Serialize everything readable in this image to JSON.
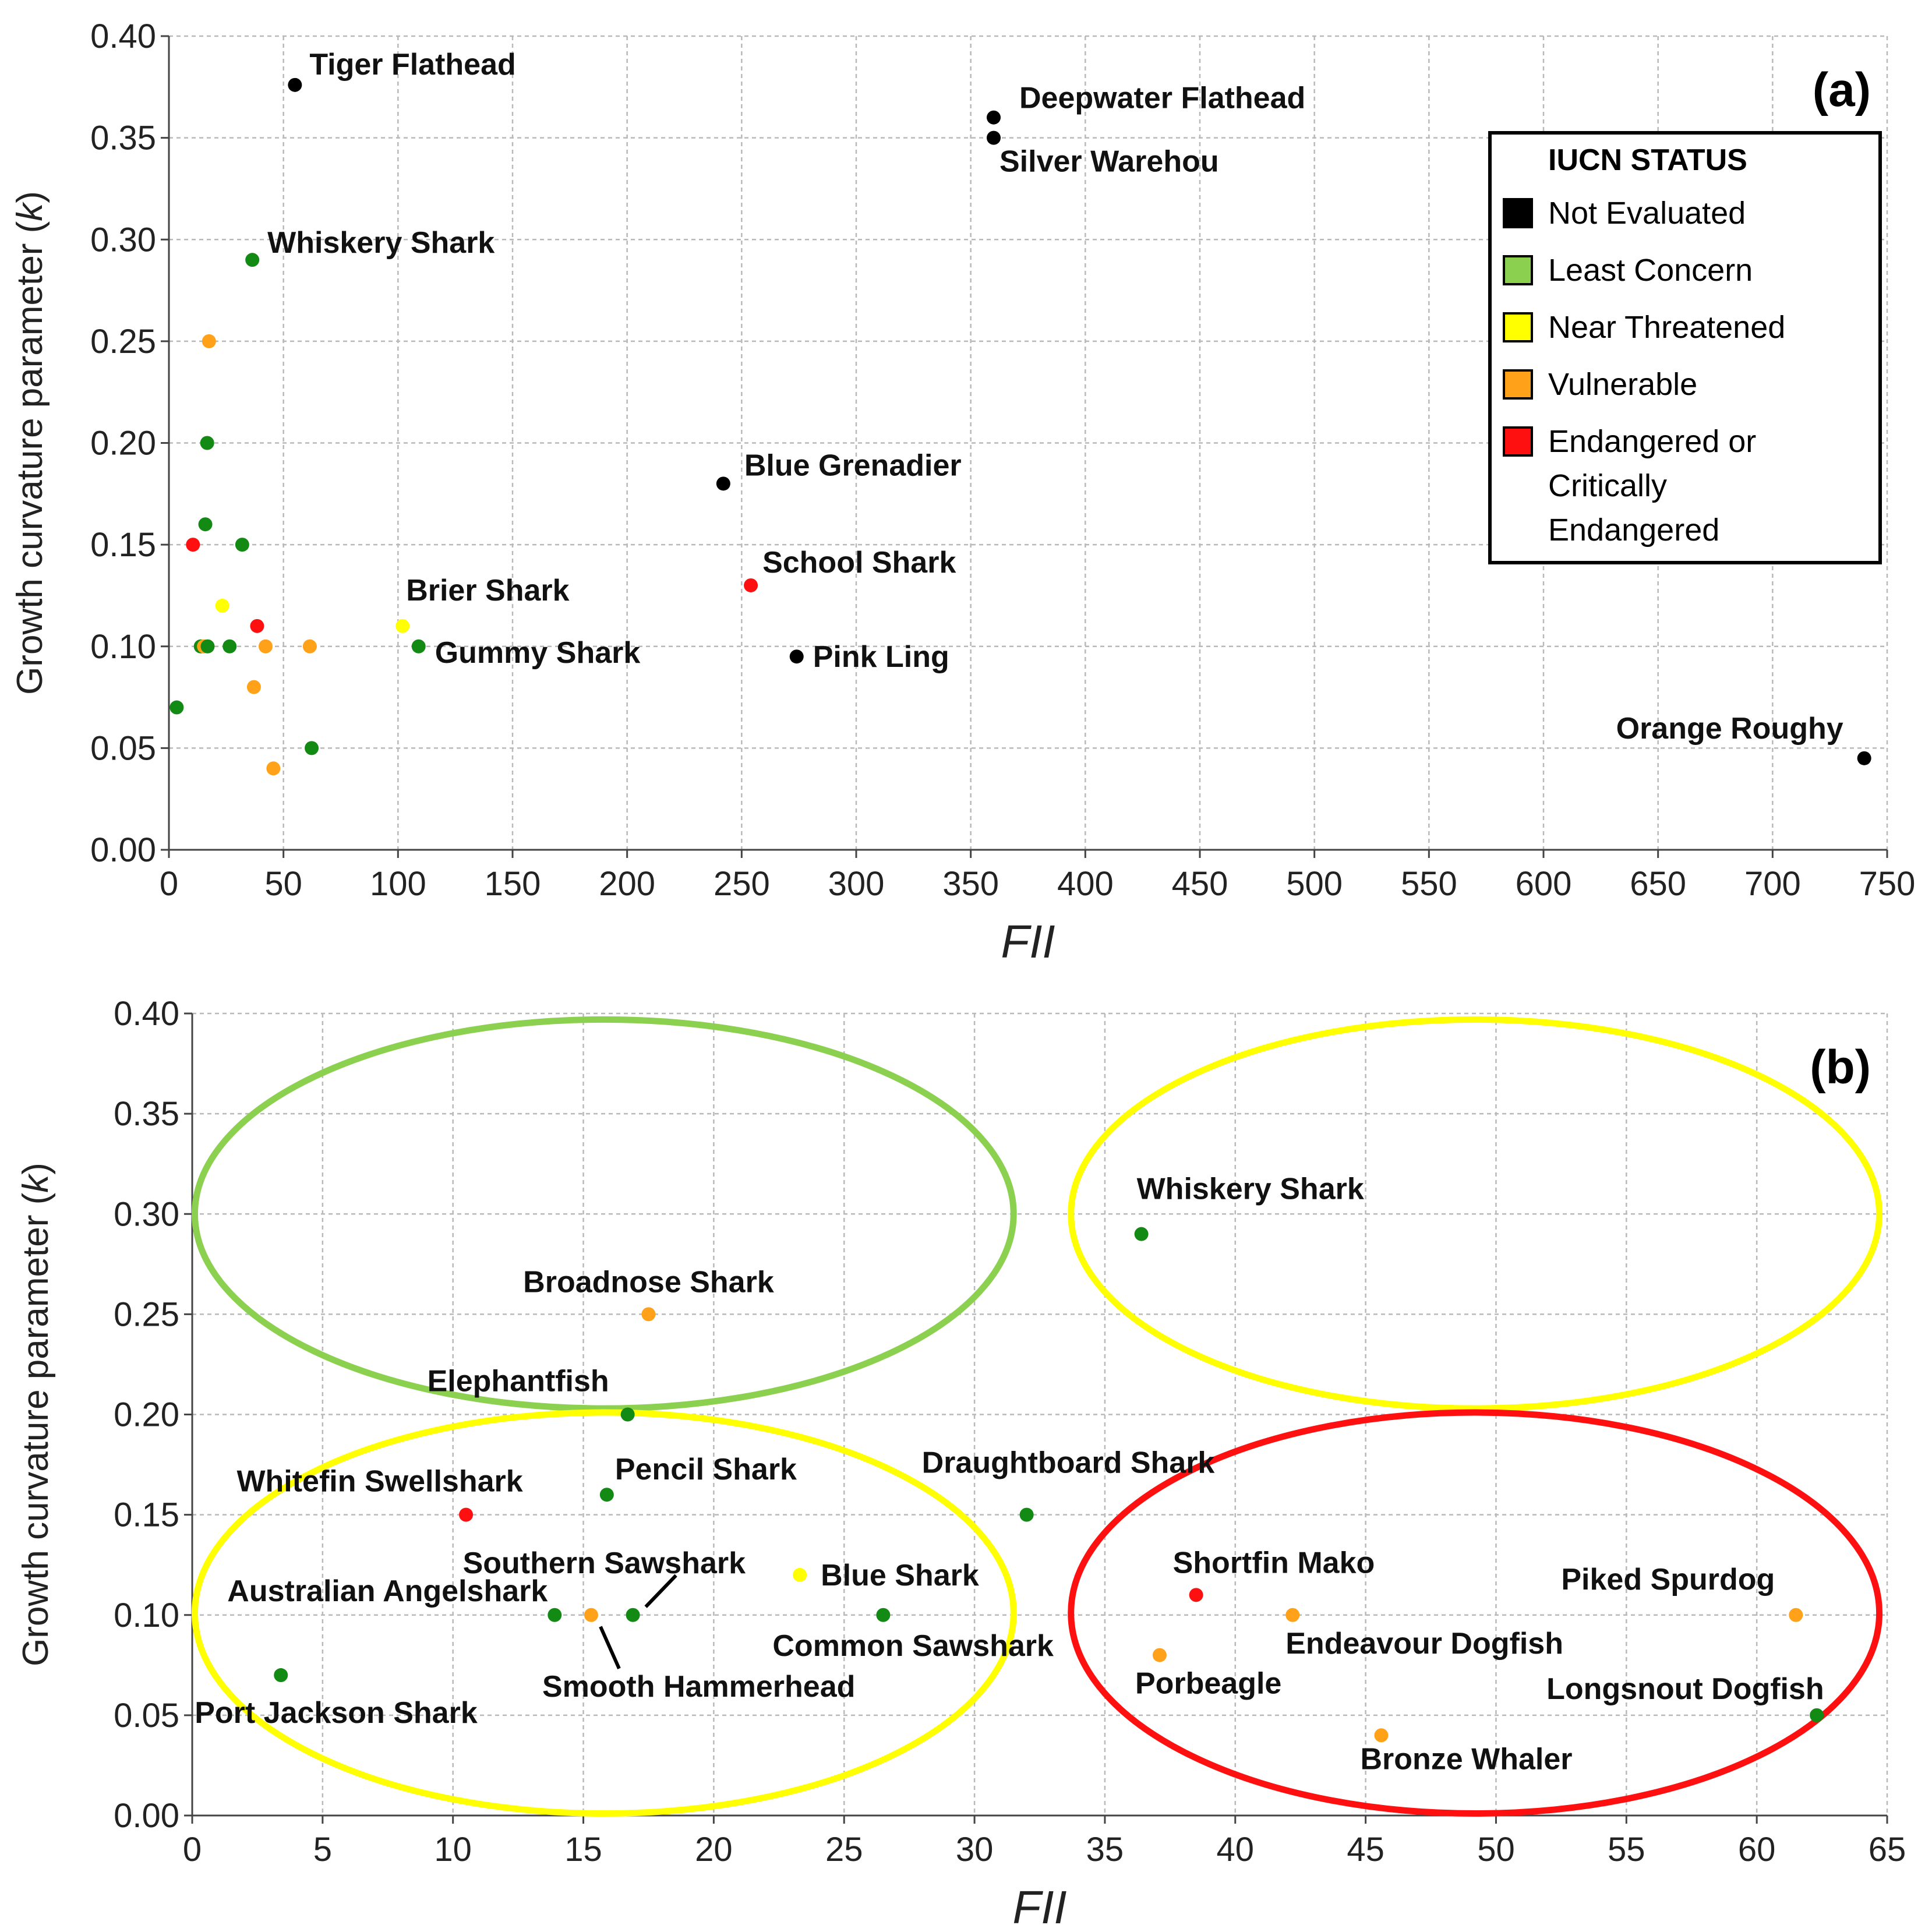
{
  "colors": {
    "Not Evaluated": "#000000",
    "Least Concern": "#138a13",
    "Least Concern swatch": "#8cd050",
    "Near Threatened": "#ffff00",
    "Vulnerable": "#ffa21a",
    "Endangered": "#ff1010"
  },
  "chart_data": [
    {
      "panel": "(a)",
      "type": "scatter",
      "title": "",
      "xlabel": "FII",
      "ylabel": "Growth curvature parameter (k)",
      "xlim": [
        0,
        750
      ],
      "ylim": [
        0,
        0.4
      ],
      "xticks": [
        0,
        50,
        100,
        150,
        200,
        250,
        300,
        350,
        400,
        450,
        500,
        550,
        600,
        650,
        700,
        750
      ],
      "yticks": [
        0.0,
        0.05,
        0.1,
        0.15,
        0.2,
        0.25,
        0.3,
        0.35,
        0.4
      ],
      "grid": true,
      "legend": {
        "title": "IUCN STATUS",
        "placement": "top-right",
        "entries": [
          {
            "label": "Not Evaluated",
            "status": "Not Evaluated"
          },
          {
            "label": "Least Concern",
            "status": "Least Concern swatch"
          },
          {
            "label": "Near Threatened",
            "status": "Near Threatened"
          },
          {
            "label": "Vulnerable",
            "status": "Vulnerable"
          },
          {
            "label": "Endangered or Critically Endangered",
            "lines": [
              "Endangered or",
              "Critically",
              "Endangered"
            ],
            "status": "Endangered"
          }
        ]
      },
      "points": [
        {
          "x": 55,
          "y": 0.376,
          "status": "Not Evaluated",
          "label": "Tiger Flathead"
        },
        {
          "x": 360,
          "y": 0.36,
          "status": "Not Evaluated",
          "label": "Deepwater Flathead"
        },
        {
          "x": 360,
          "y": 0.35,
          "status": "Not Evaluated",
          "label": "Silver Warehou"
        },
        {
          "x": 36.4,
          "y": 0.29,
          "status": "Least Concern",
          "label": "Whiskery Shark"
        },
        {
          "x": 17.5,
          "y": 0.25,
          "status": "Vulnerable",
          "label": ""
        },
        {
          "x": 16.7,
          "y": 0.2,
          "status": "Least Concern",
          "label": ""
        },
        {
          "x": 242,
          "y": 0.18,
          "status": "Not Evaluated",
          "label": "Blue Grenadier"
        },
        {
          "x": 15.9,
          "y": 0.16,
          "status": "Least Concern",
          "label": ""
        },
        {
          "x": 10.5,
          "y": 0.15,
          "status": "Endangered",
          "label": ""
        },
        {
          "x": 32,
          "y": 0.15,
          "status": "Least Concern",
          "label": ""
        },
        {
          "x": 254,
          "y": 0.13,
          "status": "Endangered",
          "label": "School Shark"
        },
        {
          "x": 23.3,
          "y": 0.12,
          "status": "Near Threatened",
          "label": ""
        },
        {
          "x": 102,
          "y": 0.11,
          "status": "Near Threatened",
          "label": "Brier Shark"
        },
        {
          "x": 38.5,
          "y": 0.11,
          "status": "Endangered",
          "label": ""
        },
        {
          "x": 13.9,
          "y": 0.1,
          "status": "Least Concern",
          "label": ""
        },
        {
          "x": 15.3,
          "y": 0.1,
          "status": "Vulnerable",
          "label": ""
        },
        {
          "x": 16.9,
          "y": 0.1,
          "status": "Least Concern",
          "label": ""
        },
        {
          "x": 26.5,
          "y": 0.1,
          "status": "Least Concern",
          "label": ""
        },
        {
          "x": 42.2,
          "y": 0.1,
          "status": "Vulnerable",
          "label": ""
        },
        {
          "x": 61.5,
          "y": 0.1,
          "status": "Vulnerable",
          "label": ""
        },
        {
          "x": 109,
          "y": 0.1,
          "status": "Least Concern",
          "label": "Gummy Shark"
        },
        {
          "x": 274,
          "y": 0.095,
          "status": "Not Evaluated",
          "label": "Pink Ling"
        },
        {
          "x": 37.1,
          "y": 0.08,
          "status": "Vulnerable",
          "label": ""
        },
        {
          "x": 3.4,
          "y": 0.07,
          "status": "Least Concern",
          "label": ""
        },
        {
          "x": 62.3,
          "y": 0.05,
          "status": "Least Concern",
          "label": ""
        },
        {
          "x": 45.6,
          "y": 0.04,
          "status": "Vulnerable",
          "label": ""
        },
        {
          "x": 740,
          "y": 0.045,
          "status": "Not Evaluated",
          "label": "Orange Roughy"
        }
      ]
    },
    {
      "panel": "(b)",
      "type": "scatter",
      "title": "",
      "xlabel": "FII",
      "ylabel": "Growth curvature parameter (k)",
      "xlim": [
        0,
        65
      ],
      "ylim": [
        0,
        0.4
      ],
      "xticks": [
        0,
        5,
        10,
        15,
        20,
        25,
        30,
        35,
        40,
        45,
        50,
        55,
        60,
        65
      ],
      "yticks": [
        0.0,
        0.05,
        0.1,
        0.15,
        0.2,
        0.25,
        0.3,
        0.35,
        0.4
      ],
      "grid": true,
      "quadrant_ellipses": [
        {
          "color": "Least Concern swatch",
          "cx": 15.8,
          "cy": 0.3,
          "rx": 15.7,
          "ry": 0.097
        },
        {
          "color": "Near Threatened",
          "cx": 49.2,
          "cy": 0.3,
          "rx": 15.5,
          "ry": 0.097
        },
        {
          "color": "Near Threatened",
          "cx": 15.8,
          "cy": 0.101,
          "rx": 15.7,
          "ry": 0.1
        },
        {
          "color": "Endangered",
          "cx": 49.2,
          "cy": 0.101,
          "rx": 15.5,
          "ry": 0.1
        }
      ],
      "points": [
        {
          "x": 36.4,
          "y": 0.29,
          "status": "Least Concern",
          "label": "Whiskery Shark"
        },
        {
          "x": 17.5,
          "y": 0.25,
          "status": "Vulnerable",
          "label": "Broadnose Shark"
        },
        {
          "x": 16.7,
          "y": 0.2,
          "status": "Least Concern",
          "label": "Elephantfish"
        },
        {
          "x": 15.9,
          "y": 0.16,
          "status": "Least Concern",
          "label": "Pencil Shark"
        },
        {
          "x": 10.5,
          "y": 0.15,
          "status": "Endangered",
          "label": "Whitefin Swellshark"
        },
        {
          "x": 32.0,
          "y": 0.15,
          "status": "Least Concern",
          "label": "Draughtboard Shark"
        },
        {
          "x": 23.3,
          "y": 0.12,
          "status": "Near Threatened",
          "label": "Blue Shark"
        },
        {
          "x": 38.5,
          "y": 0.11,
          "status": "Endangered",
          "label": "Shortfin Mako"
        },
        {
          "x": 13.9,
          "y": 0.1,
          "status": "Least Concern",
          "label": "Australian Angelshark"
        },
        {
          "x": 15.3,
          "y": 0.1,
          "status": "Vulnerable",
          "label": "Smooth Hammerhead"
        },
        {
          "x": 16.9,
          "y": 0.1,
          "status": "Least Concern",
          "label": "Southern Sawshark"
        },
        {
          "x": 26.5,
          "y": 0.1,
          "status": "Least Concern",
          "label": "Common Sawshark"
        },
        {
          "x": 42.2,
          "y": 0.1,
          "status": "Vulnerable",
          "label": "Endeavour Dogfish"
        },
        {
          "x": 61.5,
          "y": 0.1,
          "status": "Vulnerable",
          "label": "Piked Spurdog"
        },
        {
          "x": 37.1,
          "y": 0.08,
          "status": "Vulnerable",
          "label": "Porbeagle"
        },
        {
          "x": 3.4,
          "y": 0.07,
          "status": "Least Concern",
          "label": "Port Jackson Shark"
        },
        {
          "x": 62.3,
          "y": 0.05,
          "status": "Least Concern",
          "label": "Longsnout Dogfish"
        },
        {
          "x": 45.6,
          "y": 0.04,
          "status": "Vulnerable",
          "label": "Bronze Whaler"
        }
      ]
    }
  ]
}
